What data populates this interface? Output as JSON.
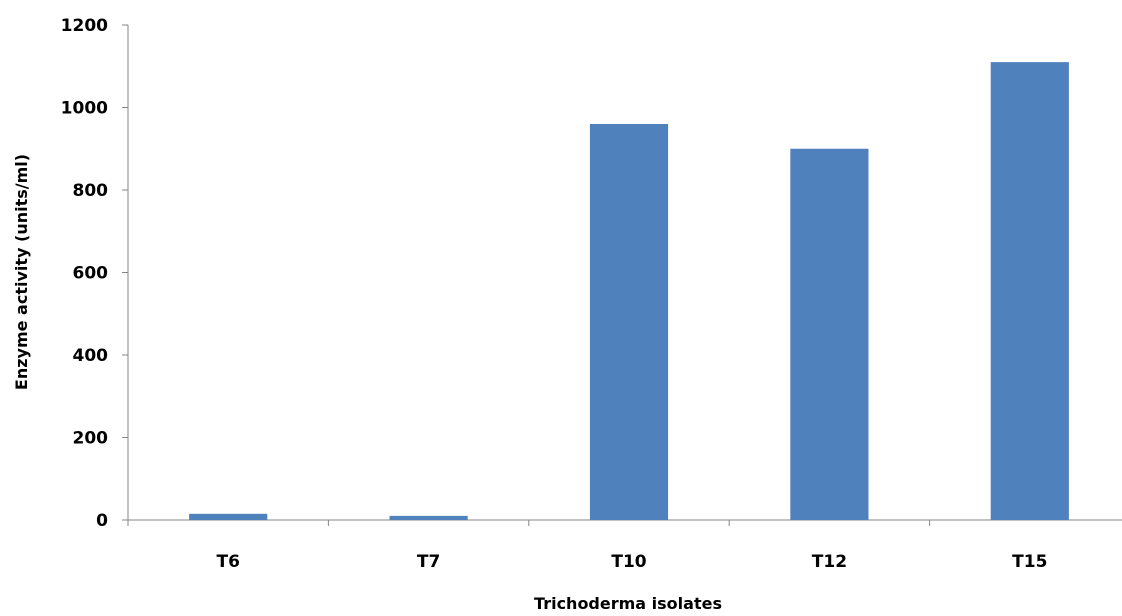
{
  "chart_data": {
    "type": "bar",
    "title": "",
    "xlabel": "Trichoderma isolates",
    "ylabel": "Enzyme activity (units/ml)",
    "categories": [
      "T6",
      "T7",
      "T10",
      "T12",
      "T15"
    ],
    "values": [
      15,
      10,
      960,
      900,
      1110
    ],
    "ylim": [
      0,
      1200
    ],
    "yticks": [
      0,
      200,
      400,
      600,
      800,
      1000,
      1200
    ],
    "grid": false,
    "legend": "none",
    "bar_color": "#4F81BD"
  }
}
